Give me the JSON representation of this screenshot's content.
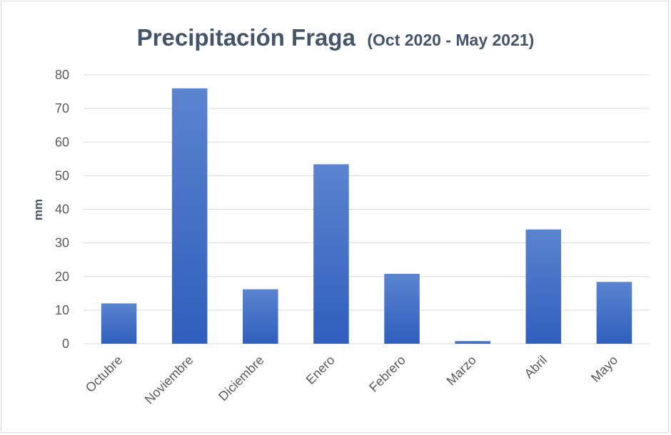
{
  "chart_data": {
    "type": "bar",
    "title": "Precipitación Fraga",
    "subtitle": "(Oct 2020 - May 2021)",
    "xlabel": "",
    "ylabel": "mm",
    "categories": [
      "Octubre",
      "Noviembre",
      "Diciembre",
      "Enero",
      "Febrero",
      "Marzo",
      "Abril",
      "Mayo"
    ],
    "values": [
      12,
      76,
      16.2,
      53.4,
      20.8,
      0.8,
      34,
      18.4
    ],
    "ylim": [
      0,
      80
    ],
    "yticks": [
      "0",
      "10",
      "20",
      "30",
      "40",
      "50",
      "60",
      "70",
      "80"
    ],
    "grid": true,
    "legend": "none",
    "colors": {
      "bar_top": "#5b84cf",
      "bar_bottom": "#2f5fbd",
      "grid": "#d9d9d9",
      "text": "#595959",
      "title": "#44546a"
    }
  }
}
